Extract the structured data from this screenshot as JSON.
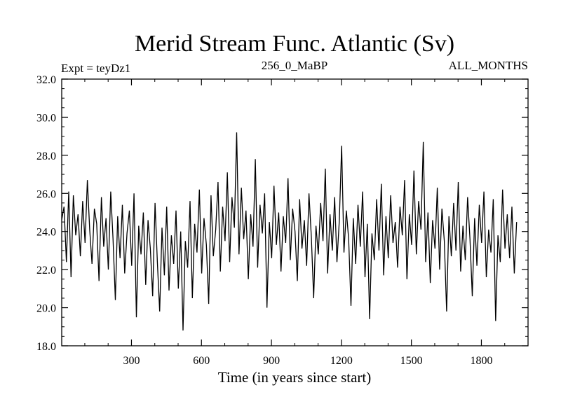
{
  "chart_data": {
    "type": "line",
    "title": "Merid Stream Func. Atlantic (Sv)",
    "subtitle_left": "Expt = teyDz1",
    "subtitle_center": "256_0_MaBP",
    "subtitle_right": "ALL_MONTHS",
    "xlabel": "Time (in years since start)",
    "ylabel": "",
    "xlim": [
      1,
      2000
    ],
    "ylim": [
      18.0,
      32.0
    ],
    "x_ticks": [
      300,
      600,
      900,
      1200,
      1500,
      1800
    ],
    "y_ticks": [
      "18.0",
      "20.0",
      "22.0",
      "24.0",
      "26.0",
      "28.0",
      "30.0",
      "32.0"
    ],
    "grid": false,
    "legend": "none",
    "line_color": "#000000",
    "series": [
      {
        "x_start": 1,
        "x_step": 10,
        "values": [
          24.6,
          25.3,
          22.4,
          26.1,
          21.6,
          25.9,
          23.8,
          24.9,
          22.7,
          25.6,
          23.4,
          26.7,
          24.1,
          22.3,
          25.2,
          24.4,
          21.4,
          25.8,
          23.2,
          24.7,
          22.0,
          26.1,
          23.6,
          20.4,
          24.8,
          22.6,
          25.4,
          21.8,
          23.9,
          25.1,
          22.2,
          26.0,
          19.5,
          24.3,
          22.8,
          25.0,
          21.2,
          24.6,
          23.1,
          20.6,
          25.5,
          22.4,
          19.8,
          24.2,
          21.7,
          25.3,
          20.9,
          23.8,
          22.3,
          25.1,
          21.0,
          24.0,
          18.8,
          23.5,
          22.1,
          25.6,
          20.5,
          24.4,
          22.9,
          26.2,
          21.8,
          24.7,
          23.3,
          20.2,
          25.9,
          22.7,
          24.1,
          26.6,
          21.9,
          25.3,
          23.5,
          27.1,
          22.4,
          25.8,
          24.2,
          29.2,
          22.8,
          26.3,
          23.6,
          25.1,
          21.5,
          24.9,
          23.2,
          27.8,
          22.1,
          25.4,
          23.9,
          26.0,
          20.0,
          24.5,
          22.6,
          26.4,
          23.3,
          25.0,
          21.9,
          24.8,
          23.4,
          26.8,
          22.5,
          25.2,
          24.0,
          21.4,
          25.7,
          23.1,
          24.6,
          22.2,
          26.0,
          23.7,
          20.5,
          24.3,
          22.8,
          25.5,
          23.5,
          27.3,
          21.8,
          24.9,
          23.0,
          25.8,
          22.4,
          24.6,
          28.5,
          22.9,
          25.1,
          23.6,
          20.1,
          24.7,
          22.3,
          25.4,
          23.2,
          26.1,
          21.6,
          24.4,
          19.4,
          23.9,
          22.5,
          25.7,
          23.0,
          26.5,
          21.7,
          24.8,
          22.6,
          25.9,
          23.4,
          24.5,
          22.1,
          25.3,
          23.8,
          26.7,
          21.5,
          24.9,
          23.3,
          27.2,
          22.8,
          25.6,
          24.1,
          28.7,
          22.4,
          25.0,
          21.3,
          24.6,
          23.1,
          26.3,
          22.0,
          25.2,
          23.5,
          19.8,
          24.8,
          22.7,
          25.5,
          23.0,
          26.6,
          21.9,
          24.3,
          22.5,
          25.8,
          23.6,
          20.6,
          24.7,
          22.2,
          25.4,
          23.4,
          26.1,
          21.6,
          24.1,
          22.9,
          25.7,
          19.3,
          23.8,
          22.4,
          26.2,
          23.1,
          24.9,
          22.6,
          25.3,
          21.8,
          24.5
        ]
      }
    ]
  }
}
